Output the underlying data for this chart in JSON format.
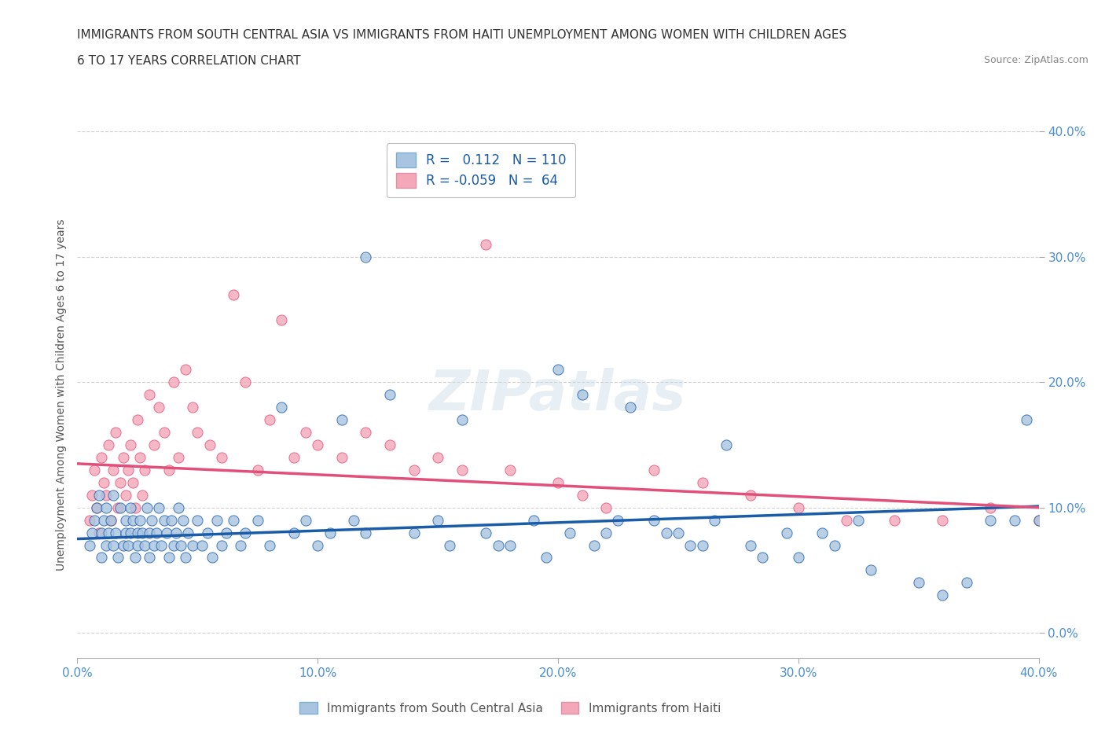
{
  "title_line1": "IMMIGRANTS FROM SOUTH CENTRAL ASIA VS IMMIGRANTS FROM HAITI UNEMPLOYMENT AMONG WOMEN WITH CHILDREN AGES",
  "title_line2": "6 TO 17 YEARS CORRELATION CHART",
  "source": "Source: ZipAtlas.com",
  "ylabel": "Unemployment Among Women with Children Ages 6 to 17 years",
  "xlim": [
    0.0,
    0.4
  ],
  "ylim": [
    -0.02,
    0.4
  ],
  "xticks": [
    0.0,
    0.1,
    0.2,
    0.3,
    0.4
  ],
  "yticks": [
    0.0,
    0.1,
    0.2,
    0.3,
    0.4
  ],
  "xticklabels": [
    "0.0%",
    "10.0%",
    "20.0%",
    "30.0%",
    "40.0%"
  ],
  "yticklabels": [
    "0.0%",
    "10.0%",
    "20.0%",
    "30.0%",
    "40.0%"
  ],
  "blue_R": 0.112,
  "blue_N": 110,
  "pink_R": -0.059,
  "pink_N": 64,
  "blue_color": "#a8c4e0",
  "pink_color": "#f4a7b9",
  "blue_line_color": "#1a5ca8",
  "pink_line_color": "#e0507a",
  "legend_blue_label": "Immigrants from South Central Asia",
  "legend_pink_label": "Immigrants from Haiti",
  "watermark": "ZIPatlas",
  "grid_color": "#c8c8c8",
  "background_color": "#ffffff",
  "blue_x": [
    0.005,
    0.006,
    0.007,
    0.008,
    0.009,
    0.01,
    0.01,
    0.011,
    0.012,
    0.012,
    0.013,
    0.014,
    0.015,
    0.015,
    0.016,
    0.017,
    0.018,
    0.019,
    0.02,
    0.02,
    0.021,
    0.022,
    0.022,
    0.023,
    0.024,
    0.025,
    0.025,
    0.026,
    0.027,
    0.028,
    0.029,
    0.03,
    0.03,
    0.031,
    0.032,
    0.033,
    0.034,
    0.035,
    0.036,
    0.037,
    0.038,
    0.039,
    0.04,
    0.041,
    0.042,
    0.043,
    0.044,
    0.045,
    0.046,
    0.048,
    0.05,
    0.052,
    0.054,
    0.056,
    0.058,
    0.06,
    0.062,
    0.065,
    0.068,
    0.07,
    0.075,
    0.08,
    0.085,
    0.09,
    0.095,
    0.1,
    0.105,
    0.11,
    0.115,
    0.12,
    0.13,
    0.14,
    0.15,
    0.16,
    0.17,
    0.18,
    0.19,
    0.2,
    0.21,
    0.22,
    0.23,
    0.24,
    0.25,
    0.26,
    0.27,
    0.28,
    0.3,
    0.31,
    0.33,
    0.35,
    0.36,
    0.37,
    0.38,
    0.39,
    0.395,
    0.4,
    0.12,
    0.155,
    0.175,
    0.195,
    0.205,
    0.215,
    0.225,
    0.245,
    0.255,
    0.265,
    0.285,
    0.295,
    0.315,
    0.325
  ],
  "blue_y": [
    0.07,
    0.08,
    0.09,
    0.1,
    0.11,
    0.08,
    0.06,
    0.09,
    0.07,
    0.1,
    0.08,
    0.09,
    0.07,
    0.11,
    0.08,
    0.06,
    0.1,
    0.07,
    0.09,
    0.08,
    0.07,
    0.1,
    0.08,
    0.09,
    0.06,
    0.08,
    0.07,
    0.09,
    0.08,
    0.07,
    0.1,
    0.08,
    0.06,
    0.09,
    0.07,
    0.08,
    0.1,
    0.07,
    0.09,
    0.08,
    0.06,
    0.09,
    0.07,
    0.08,
    0.1,
    0.07,
    0.09,
    0.06,
    0.08,
    0.07,
    0.09,
    0.07,
    0.08,
    0.06,
    0.09,
    0.07,
    0.08,
    0.09,
    0.07,
    0.08,
    0.09,
    0.07,
    0.18,
    0.08,
    0.09,
    0.07,
    0.08,
    0.17,
    0.09,
    0.08,
    0.19,
    0.08,
    0.09,
    0.17,
    0.08,
    0.07,
    0.09,
    0.21,
    0.19,
    0.08,
    0.18,
    0.09,
    0.08,
    0.07,
    0.15,
    0.07,
    0.06,
    0.08,
    0.05,
    0.04,
    0.03,
    0.04,
    0.09,
    0.09,
    0.17,
    0.09,
    0.3,
    0.07,
    0.07,
    0.06,
    0.08,
    0.07,
    0.09,
    0.08,
    0.07,
    0.09,
    0.06,
    0.08,
    0.07,
    0.09
  ],
  "pink_x": [
    0.005,
    0.006,
    0.007,
    0.008,
    0.009,
    0.01,
    0.011,
    0.012,
    0.013,
    0.014,
    0.015,
    0.016,
    0.017,
    0.018,
    0.019,
    0.02,
    0.021,
    0.022,
    0.023,
    0.024,
    0.025,
    0.026,
    0.027,
    0.028,
    0.03,
    0.032,
    0.034,
    0.036,
    0.038,
    0.04,
    0.042,
    0.045,
    0.048,
    0.05,
    0.055,
    0.06,
    0.065,
    0.07,
    0.075,
    0.08,
    0.085,
    0.09,
    0.095,
    0.1,
    0.11,
    0.12,
    0.13,
    0.14,
    0.15,
    0.16,
    0.17,
    0.18,
    0.2,
    0.21,
    0.22,
    0.24,
    0.26,
    0.28,
    0.3,
    0.32,
    0.34,
    0.36,
    0.38,
    0.4
  ],
  "pink_y": [
    0.09,
    0.11,
    0.13,
    0.1,
    0.08,
    0.14,
    0.12,
    0.11,
    0.15,
    0.09,
    0.13,
    0.16,
    0.1,
    0.12,
    0.14,
    0.11,
    0.13,
    0.15,
    0.12,
    0.1,
    0.17,
    0.14,
    0.11,
    0.13,
    0.19,
    0.15,
    0.18,
    0.16,
    0.13,
    0.2,
    0.14,
    0.21,
    0.18,
    0.16,
    0.15,
    0.14,
    0.27,
    0.2,
    0.13,
    0.17,
    0.25,
    0.14,
    0.16,
    0.15,
    0.14,
    0.16,
    0.15,
    0.13,
    0.14,
    0.13,
    0.31,
    0.13,
    0.12,
    0.11,
    0.1,
    0.13,
    0.12,
    0.11,
    0.1,
    0.09,
    0.09,
    0.09,
    0.1,
    0.09
  ],
  "blue_trend": [
    0.075,
    0.101
  ],
  "pink_trend": [
    0.135,
    0.1
  ]
}
